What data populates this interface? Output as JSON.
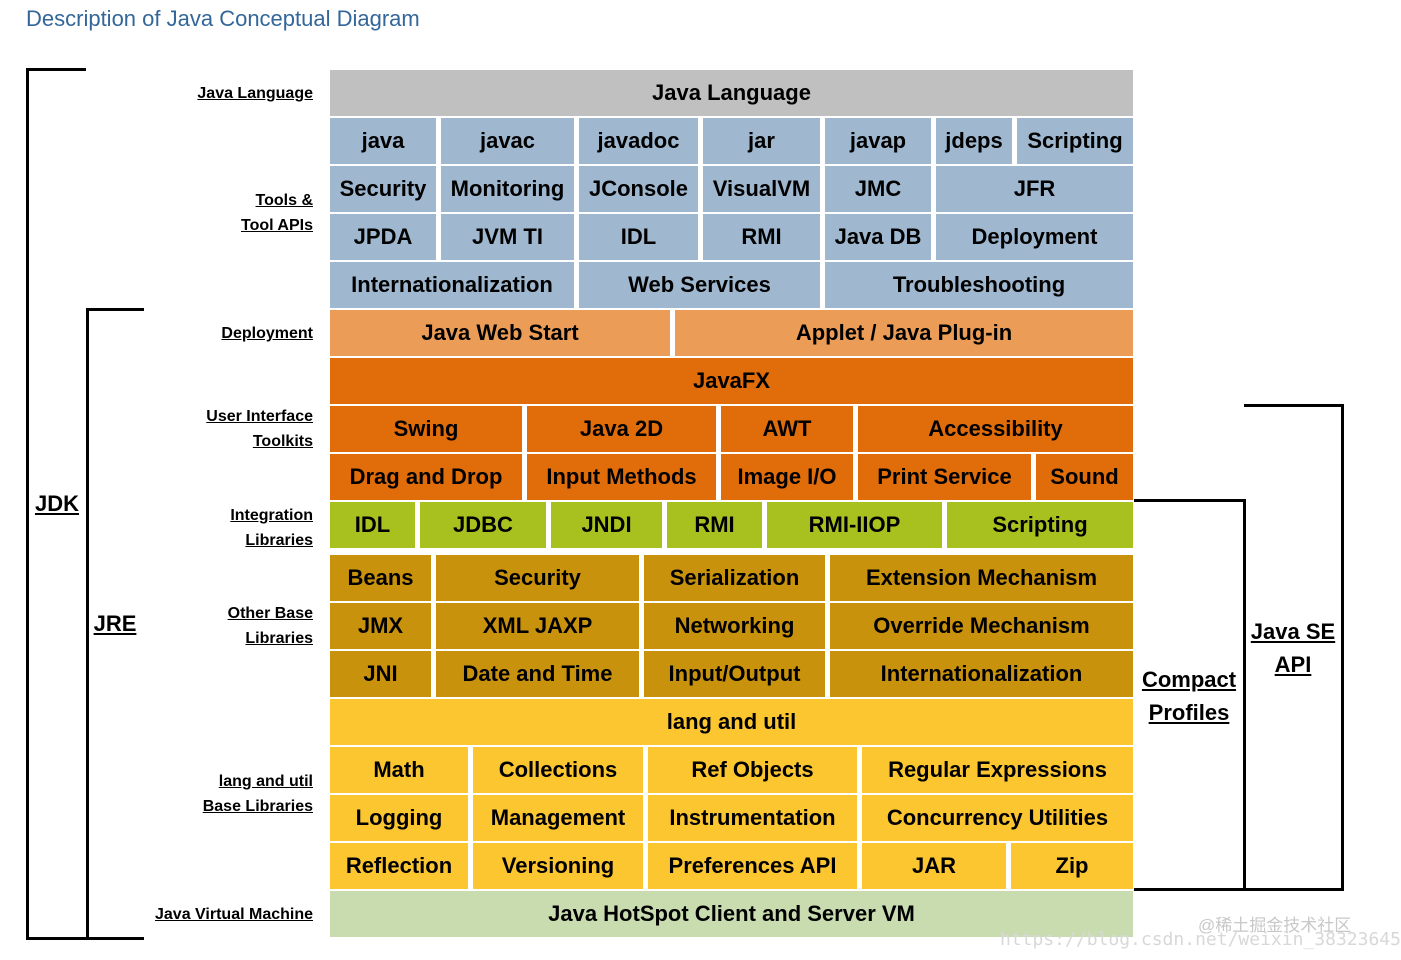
{
  "title": "Description of Java Conceptual Diagram",
  "colors": {
    "lang": "#c0c0c0",
    "tools": "#9fb8d0",
    "deploy": "#eb9d57",
    "ui": "#e06c0a",
    "integ": "#a9c11f",
    "other": "#c9920d",
    "langutil": "#fcc630",
    "jvm": "#c8dcaf"
  },
  "row_labels": {
    "java_language": "Java Language",
    "tools_1": "Tools &",
    "tools_2": "Tool APIs",
    "deployment": "Deployment",
    "ui_1": "User Interface",
    "ui_2": "Toolkits",
    "integ_1": "Integration",
    "integ_2": "Libraries",
    "other_1": "Other Base",
    "other_2": "Libraries",
    "lu_1": "lang and util",
    "lu_2": "Base Libraries",
    "jvm": "Java Virtual Machine"
  },
  "brackets": {
    "jdk": "JDK",
    "jre": "JRE",
    "compact_1": "Compact",
    "compact_2": "Profiles",
    "javase_1": "Java SE",
    "javase_2": "API"
  },
  "rows": [
    {
      "color": "lang",
      "cells": [
        "Java Language"
      ]
    },
    {
      "color": "tools",
      "cells": [
        "java",
        "javac",
        "javadoc",
        "jar",
        "javap",
        "jdeps",
        "Scripting"
      ]
    },
    {
      "color": "tools",
      "cells": [
        "Security",
        "Monitoring",
        "JConsole",
        "VisualVM",
        "JMC",
        "JFR"
      ]
    },
    {
      "color": "tools",
      "cells": [
        "JPDA",
        "JVM TI",
        "IDL",
        "RMI",
        "Java DB",
        "Deployment"
      ]
    },
    {
      "color": "tools",
      "cells": [
        "Internationalization",
        "Web Services",
        "Troubleshooting"
      ]
    },
    {
      "color": "deploy",
      "cells": [
        "Java Web Start",
        "Applet / Java Plug-in"
      ]
    },
    {
      "color": "ui",
      "cells": [
        "JavaFX"
      ]
    },
    {
      "color": "ui",
      "cells": [
        "Swing",
        "Java 2D",
        "AWT",
        "Accessibility"
      ]
    },
    {
      "color": "ui",
      "cells": [
        "Drag and Drop",
        "Input Methods",
        "Image I/O",
        "Print Service",
        "Sound"
      ]
    },
    {
      "color": "integ",
      "cells": [
        "IDL",
        "JDBC",
        "JNDI",
        "RMI",
        "RMI-IIOP",
        "Scripting"
      ]
    },
    {
      "color": "other",
      "cells": [
        "Beans",
        "Security",
        "Serialization",
        "Extension Mechanism"
      ]
    },
    {
      "color": "other",
      "cells": [
        "JMX",
        "XML JAXP",
        "Networking",
        "Override Mechanism"
      ]
    },
    {
      "color": "other",
      "cells": [
        "JNI",
        "Date and Time",
        "Input/Output",
        "Internationalization"
      ]
    },
    {
      "color": "langutil",
      "cells": [
        "lang and util"
      ]
    },
    {
      "color": "langutil",
      "cells": [
        "Math",
        "Collections",
        "Ref Objects",
        "Regular Expressions"
      ]
    },
    {
      "color": "langutil",
      "cells": [
        "Logging",
        "Management",
        "Instrumentation",
        "Concurrency Utilities"
      ]
    },
    {
      "color": "langutil",
      "cells": [
        "Reflection",
        "Versioning",
        "Preferences API",
        "JAR",
        "Zip"
      ]
    },
    {
      "color": "jvm",
      "cells": [
        "Java HotSpot Client and Server VM"
      ]
    }
  ],
  "watermark": {
    "line1": "@稀土掘金技术社区",
    "line2": "https://blog.csdn.net/weixin_38323645"
  }
}
